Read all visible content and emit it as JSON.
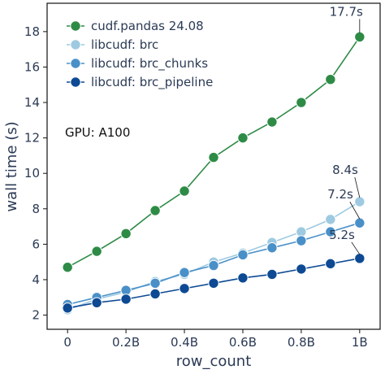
{
  "chart_data": {
    "type": "line",
    "xlabel": "row_count",
    "ylabel": "wall time (s)",
    "x": [
      0,
      0.1,
      0.2,
      0.3,
      0.4,
      0.5,
      0.6,
      0.7,
      0.8,
      0.9,
      1.0
    ],
    "xlim": [
      -0.07,
      1.07
    ],
    "ylim": [
      1.2,
      19.6
    ],
    "x_ticks": [
      {
        "value": 0,
        "label": "0"
      },
      {
        "value": 0.2,
        "label": "0.2B"
      },
      {
        "value": 0.4,
        "label": "0.4B"
      },
      {
        "value": 0.6,
        "label": "0.6B"
      },
      {
        "value": 0.8,
        "label": "0.8B"
      },
      {
        "value": 1.0,
        "label": "1B"
      }
    ],
    "y_ticks": [
      {
        "value": 2,
        "label": "2"
      },
      {
        "value": 4,
        "label": "4"
      },
      {
        "value": 6,
        "label": "6"
      },
      {
        "value": 8,
        "label": "8"
      },
      {
        "value": 10,
        "label": "10"
      },
      {
        "value": 12,
        "label": "12"
      },
      {
        "value": 14,
        "label": "14"
      },
      {
        "value": 16,
        "label": "16"
      },
      {
        "value": 18,
        "label": "18"
      }
    ],
    "grid": false,
    "legend_position": "top-left",
    "series": [
      {
        "name": "cudf.pandas 24.08",
        "color": "#2e8b46",
        "values": [
          4.7,
          5.6,
          6.6,
          7.9,
          9.0,
          10.9,
          12.0,
          12.9,
          14.0,
          15.3,
          17.7
        ]
      },
      {
        "name": "libcudf: brc",
        "color": "#9ecae1",
        "values": [
          2.3,
          2.9,
          3.3,
          3.9,
          4.3,
          5.0,
          5.5,
          6.1,
          6.7,
          7.4,
          8.4
        ]
      },
      {
        "name": "libcudf: brc_chunks",
        "color": "#4a90c8",
        "values": [
          2.6,
          3.0,
          3.4,
          3.8,
          4.4,
          4.8,
          5.4,
          5.8,
          6.2,
          6.7,
          7.2
        ]
      },
      {
        "name": "libcudf: brc_pipeline",
        "color": "#0d4a93",
        "values": [
          2.4,
          2.7,
          2.9,
          3.2,
          3.5,
          3.8,
          4.1,
          4.3,
          4.6,
          4.9,
          5.2
        ]
      }
    ],
    "annotations": [
      {
        "text": "17.7s",
        "series": 0,
        "x": 1.0,
        "y": 17.7
      },
      {
        "text": "8.4s",
        "series": 1,
        "x": 1.0,
        "y": 8.4
      },
      {
        "text": "7.2s",
        "series": 2,
        "x": 1.0,
        "y": 7.2
      },
      {
        "text": "5.2s",
        "series": 3,
        "x": 1.0,
        "y": 5.2
      }
    ],
    "note": "GPU: A100"
  }
}
